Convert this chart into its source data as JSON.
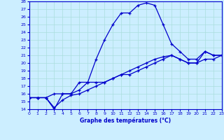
{
  "title": "Graphe des températures (°C)",
  "background_color": "#cceeff",
  "line_color": "#0000cc",
  "grid_color": "#aadddd",
  "xlim": [
    0,
    23
  ],
  "ylim": [
    14,
    28
  ],
  "xticks": [
    0,
    1,
    2,
    3,
    4,
    5,
    6,
    7,
    8,
    9,
    10,
    11,
    12,
    13,
    14,
    15,
    16,
    17,
    18,
    19,
    20,
    21,
    22,
    23
  ],
  "yticks": [
    14,
    15,
    16,
    17,
    18,
    19,
    20,
    21,
    22,
    23,
    24,
    25,
    26,
    27,
    28
  ],
  "curve1_x": [
    0,
    1,
    2,
    3,
    4,
    5,
    6,
    7,
    8,
    9,
    10,
    11,
    12,
    13,
    14,
    15,
    16,
    17,
    18,
    19,
    20,
    21,
    22,
    23
  ],
  "curve1_y": [
    15.5,
    15.5,
    15.5,
    16.0,
    16.0,
    16.0,
    17.5,
    17.5,
    20.5,
    23.0,
    25.0,
    26.5,
    26.5,
    27.5,
    27.8,
    27.5,
    25.0,
    22.5,
    21.5,
    20.5,
    20.5,
    21.5,
    21.0,
    21.0
  ],
  "curve2_x": [
    0,
    1,
    2,
    3,
    4,
    5,
    6,
    7,
    8,
    9,
    10,
    11,
    12,
    13,
    14,
    15,
    16,
    17,
    18,
    19,
    20,
    21,
    22,
    23
  ],
  "curve2_y": [
    15.5,
    15.5,
    15.5,
    14.0,
    16.0,
    16.0,
    16.5,
    17.5,
    17.5,
    17.5,
    18.0,
    18.5,
    18.5,
    19.0,
    19.5,
    20.0,
    20.5,
    21.0,
    20.5,
    20.0,
    20.0,
    21.5,
    21.0,
    21.0
  ],
  "curve3_x": [
    0,
    1,
    2,
    3,
    4,
    5,
    6,
    7,
    8,
    9,
    10,
    11,
    12,
    13,
    14,
    15,
    16,
    17,
    18,
    19,
    20,
    21,
    22,
    23
  ],
  "curve3_y": [
    15.5,
    15.5,
    15.5,
    14.2,
    15.2,
    15.8,
    16.0,
    16.5,
    17.0,
    17.5,
    18.0,
    18.5,
    19.0,
    19.5,
    20.0,
    20.5,
    20.8,
    21.0,
    20.5,
    20.0,
    20.0,
    20.5,
    20.5,
    21.0
  ]
}
